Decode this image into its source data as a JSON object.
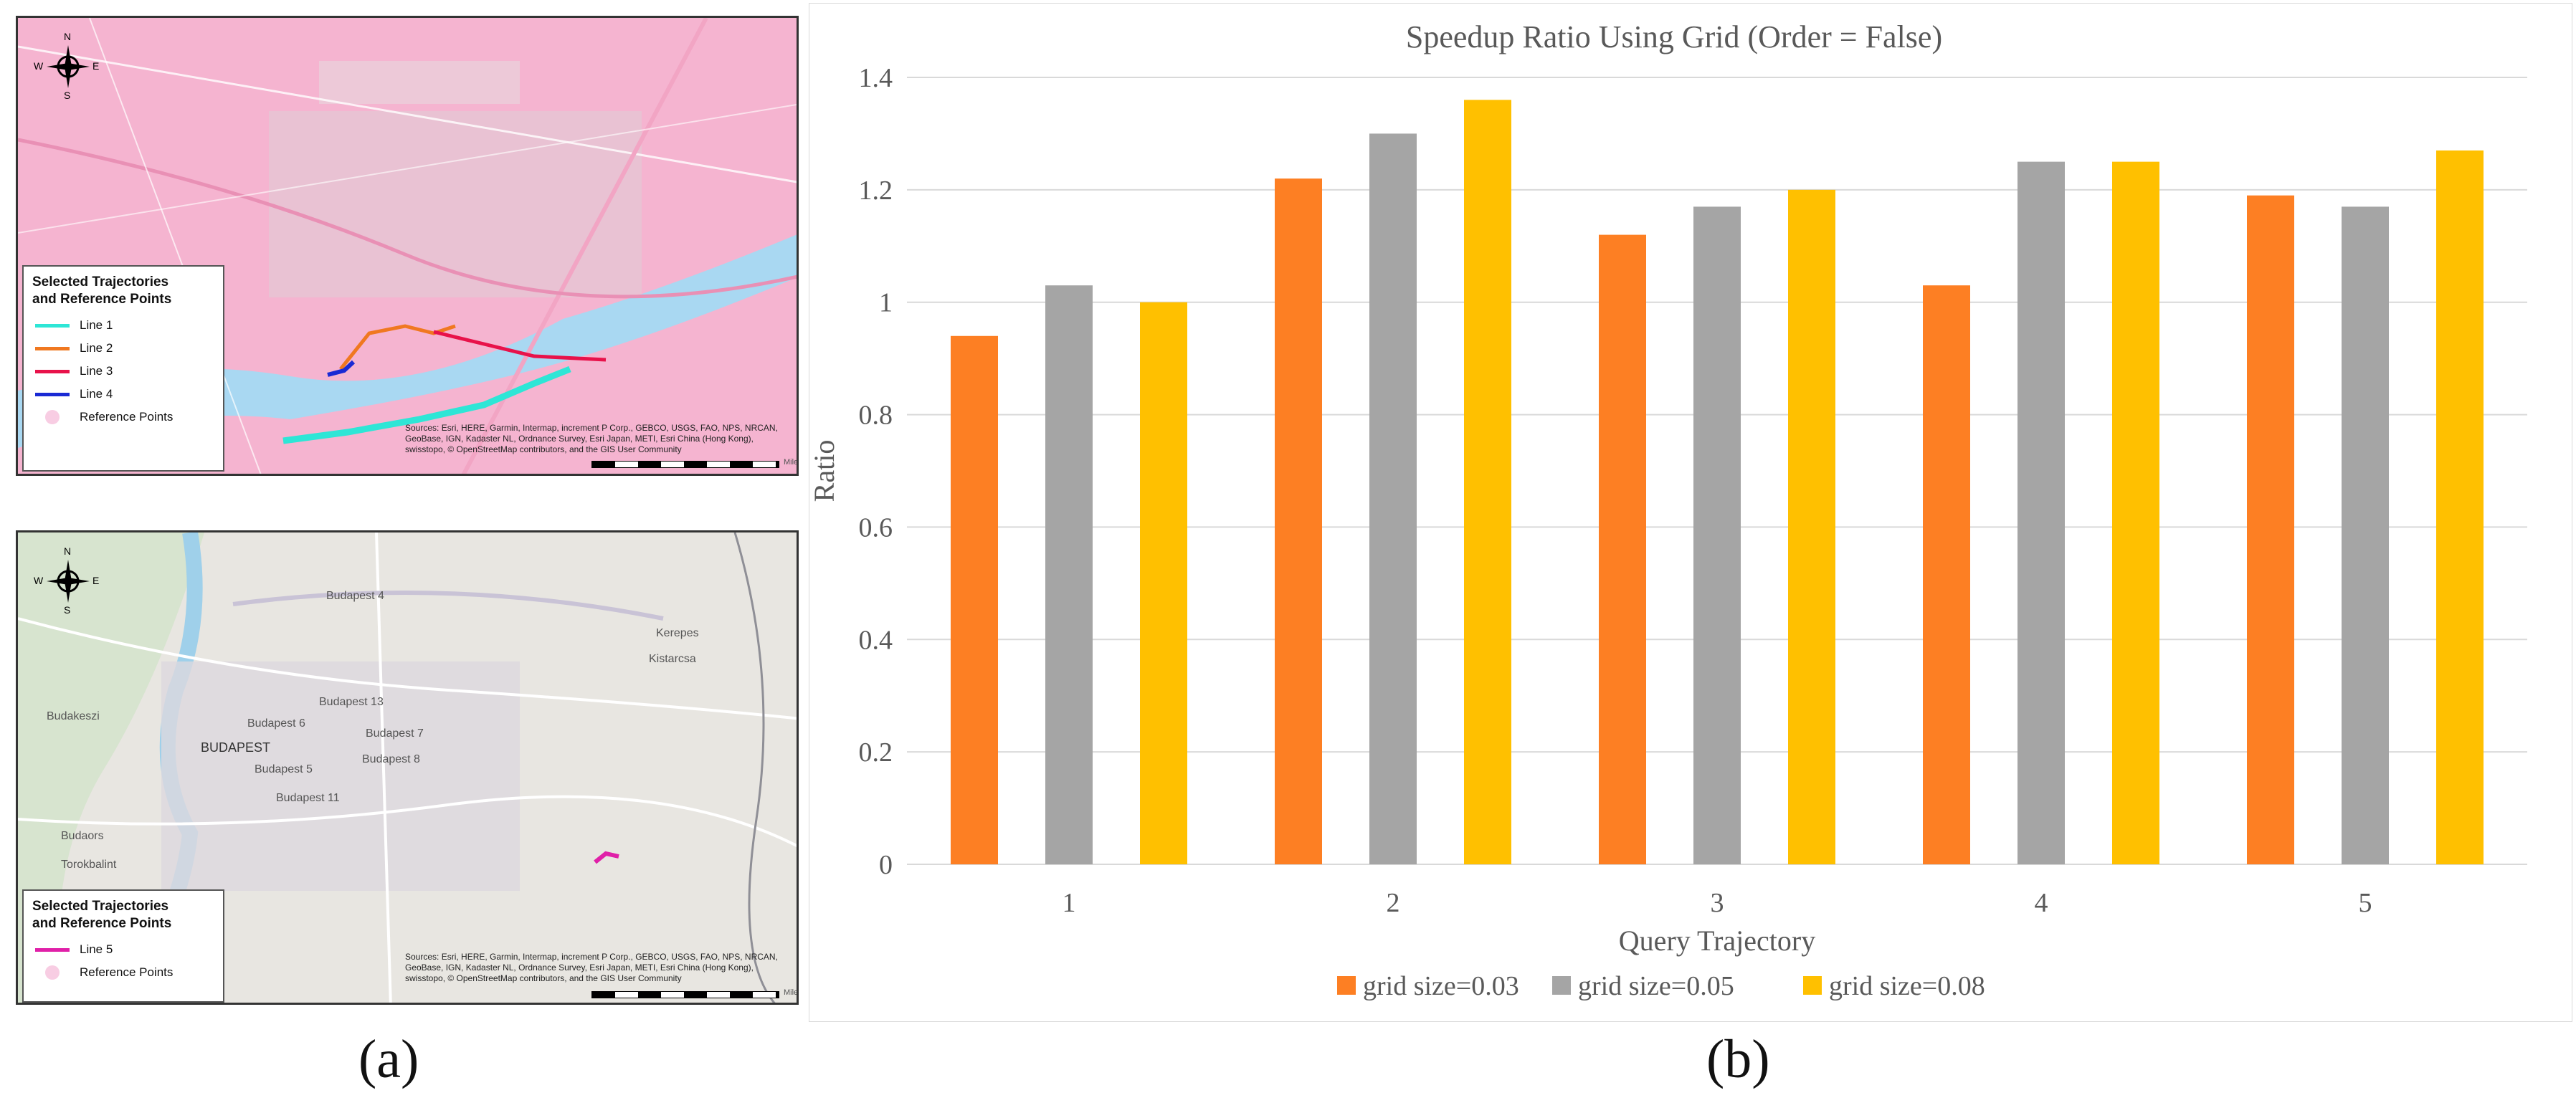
{
  "panel_a": {
    "caption": "(a)",
    "compass": {
      "n": "N",
      "s": "S",
      "e": "E",
      "w": "W"
    },
    "top_map": {
      "legend_title": "Selected Trajectories\nand Reference Points",
      "legend_items": [
        {
          "label": "Line 1",
          "color": "#2ee6d6"
        },
        {
          "label": "Line 2",
          "color": "#f07820"
        },
        {
          "label": "Line 3",
          "color": "#e8124a"
        },
        {
          "label": "Line 4",
          "color": "#1a2ad4"
        }
      ],
      "reference_label": "Reference Points",
      "attribution": "Sources: Esri, HERE, Garmin, Intermap, increment P Corp., GEBCO, USGS, FAO, NPS, NRCAN, GeoBase, IGN, Kadaster NL, Ordnance Survey, Esri Japan, METI, Esri China (Hong Kong), swisstopo, © OpenStreetMap contributors, and the GIS User Community",
      "scale_unit": "Miles"
    },
    "bottom_map": {
      "legend_title": "Selected Trajectories\nand Reference Points",
      "legend_items": [
        {
          "label": "Line 5",
          "color": "#e020a8"
        }
      ],
      "reference_label": "Reference Points",
      "attribution": "Sources: Esri, HERE, Garmin, Intermap, increment P Corp., GEBCO, USGS, FAO, NPS, NRCAN, GeoBase, IGN, Kadaster NL, Ordnance Survey, Esri Japan, METI, Esri China (Hong Kong), swisstopo, © OpenStreetMap contributors, and the GIS User Community",
      "scale_unit": "Miles",
      "place_labels": [
        "Budapest 4",
        "Budapest 13",
        "Budapest 6",
        "BUDAPEST",
        "Budapest 7",
        "Budapest 8",
        "Budapest 11",
        "Budapest 5",
        "Budakeszi",
        "Budaors",
        "Torokbalint",
        "Kerepes",
        "Kistarcsa"
      ]
    }
  },
  "panel_b": {
    "caption": "(b)"
  },
  "chart_data": {
    "type": "bar",
    "title": "Speedup Ratio Using Grid (Order = False)",
    "xlabel": "Query Trajectory",
    "ylabel": "Ratio",
    "categories": [
      "1",
      "2",
      "3",
      "4",
      "5"
    ],
    "ylim": [
      0,
      1.4
    ],
    "yticks": [
      "0",
      "0.2",
      "0.4",
      "0.6",
      "0.8",
      "1",
      "1.2",
      "1.4"
    ],
    "grid": true,
    "legend_position": "bottom",
    "series": [
      {
        "name": "grid size=0.03",
        "color": "#fd7f23",
        "values": [
          0.94,
          1.22,
          1.12,
          1.03,
          1.19
        ]
      },
      {
        "name": "grid size=0.05",
        "color": "#a5a5a5",
        "values": [
          1.03,
          1.3,
          1.17,
          1.25,
          1.17
        ]
      },
      {
        "name": "grid size=0.08",
        "color": "#ffc000",
        "values": [
          1.0,
          1.36,
          1.2,
          1.25,
          1.27
        ]
      }
    ]
  }
}
